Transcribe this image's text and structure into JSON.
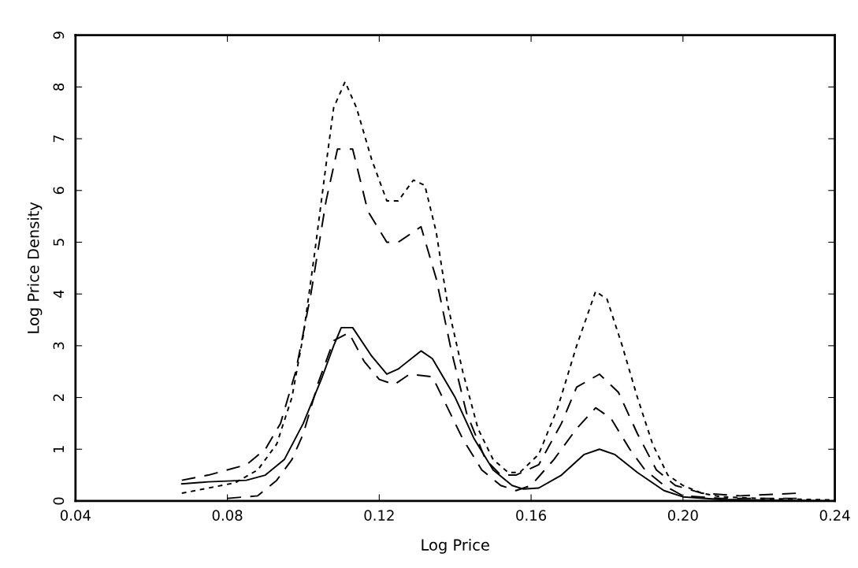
{
  "chart_data": {
    "type": "line",
    "xlabel": "Log Price",
    "ylabel": "Log Price Density",
    "xlim": [
      0.04,
      0.24
    ],
    "xticks": [
      {
        "value": 0.04,
        "label": "0.04"
      },
      {
        "value": 0.08,
        "label": "0.08"
      },
      {
        "value": 0.12,
        "label": "0.12"
      },
      {
        "value": 0.16,
        "label": "0.16"
      },
      {
        "value": 0.2,
        "label": "0.20"
      },
      {
        "value": 0.24,
        "label": "0.24"
      }
    ],
    "ylim": [
      0,
      9
    ],
    "yticks": [
      0,
      1,
      2,
      3,
      4,
      5,
      6,
      7,
      8,
      9
    ],
    "grid": false,
    "marker": "none",
    "series": [
      {
        "color": "#000000",
        "line_style": "solid",
        "x": [
          0.068,
          0.075,
          0.085,
          0.09,
          0.095,
          0.1,
          0.105,
          0.108,
          0.11,
          0.113,
          0.118,
          0.122,
          0.125,
          0.131,
          0.134,
          0.14,
          0.145,
          0.15,
          0.155,
          0.158,
          0.162,
          0.168,
          0.174,
          0.178,
          0.182,
          0.188,
          0.195,
          0.2,
          0.21,
          0.24
        ],
        "values": [
          0.33,
          0.37,
          0.4,
          0.5,
          0.8,
          1.5,
          2.4,
          3.0,
          3.35,
          3.35,
          2.8,
          2.45,
          2.55,
          2.9,
          2.75,
          2.0,
          1.2,
          0.6,
          0.3,
          0.23,
          0.25,
          0.5,
          0.9,
          1.0,
          0.9,
          0.55,
          0.2,
          0.08,
          0.03,
          0.0
        ]
      },
      {
        "color": "#000000",
        "line_style": "dotted",
        "x": [
          0.068,
          0.075,
          0.082,
          0.088,
          0.093,
          0.097,
          0.1,
          0.103,
          0.106,
          0.108,
          0.111,
          0.114,
          0.118,
          0.122,
          0.125,
          0.129,
          0.132,
          0.135,
          0.138,
          0.142,
          0.146,
          0.15,
          0.154,
          0.157,
          0.162,
          0.167,
          0.172,
          0.177,
          0.18,
          0.184,
          0.188,
          0.192,
          0.196,
          0.2,
          0.205,
          0.21,
          0.22,
          0.24
        ],
        "values": [
          0.15,
          0.25,
          0.35,
          0.6,
          1.1,
          2.0,
          3.2,
          4.8,
          6.5,
          7.6,
          8.1,
          7.6,
          6.6,
          5.8,
          5.8,
          6.2,
          6.1,
          5.2,
          3.8,
          2.5,
          1.4,
          0.8,
          0.55,
          0.55,
          0.9,
          1.8,
          3.0,
          4.05,
          3.9,
          3.0,
          2.0,
          1.1,
          0.5,
          0.3,
          0.15,
          0.08,
          0.05,
          0.02
        ]
      },
      {
        "color": "#000000",
        "line_style": "dashed",
        "x": [
          0.068,
          0.075,
          0.085,
          0.09,
          0.094,
          0.098,
          0.102,
          0.106,
          0.109,
          0.113,
          0.117,
          0.122,
          0.125,
          0.131,
          0.135,
          0.139,
          0.143,
          0.148,
          0.152,
          0.156,
          0.162,
          0.168,
          0.172,
          0.178,
          0.183,
          0.188,
          0.193,
          0.198,
          0.205,
          0.215,
          0.23
        ],
        "values": [
          0.4,
          0.5,
          0.7,
          1.0,
          1.5,
          2.5,
          4.0,
          5.8,
          6.8,
          6.8,
          5.6,
          5.0,
          5.0,
          5.3,
          4.3,
          2.9,
          1.7,
          0.8,
          0.5,
          0.5,
          0.7,
          1.5,
          2.2,
          2.45,
          2.1,
          1.3,
          0.6,
          0.3,
          0.15,
          0.1,
          0.15
        ]
      },
      {
        "color": "#000000",
        "line_style": "dashed",
        "x": [
          0.08,
          0.088,
          0.093,
          0.097,
          0.1,
          0.104,
          0.108,
          0.112,
          0.116,
          0.12,
          0.124,
          0.128,
          0.134,
          0.138,
          0.142,
          0.147,
          0.152,
          0.156,
          0.16,
          0.166,
          0.172,
          0.177,
          0.181,
          0.186,
          0.19,
          0.195,
          0.2,
          0.21,
          0.23
        ],
        "values": [
          0.05,
          0.1,
          0.4,
          0.8,
          1.3,
          2.3,
          3.1,
          3.25,
          2.7,
          2.35,
          2.25,
          2.45,
          2.4,
          1.8,
          1.2,
          0.6,
          0.3,
          0.2,
          0.3,
          0.8,
          1.4,
          1.8,
          1.6,
          1.0,
          0.6,
          0.3,
          0.1,
          0.05,
          0.05
        ]
      }
    ]
  }
}
